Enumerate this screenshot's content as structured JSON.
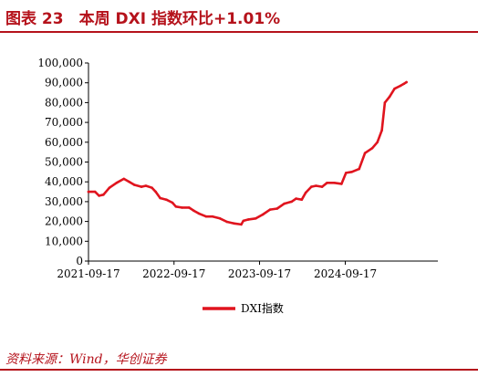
{
  "header": {
    "title": "图表 23　本周 DXI 指数环比+1.01%"
  },
  "footer": {
    "source": "资料来源：Wind，华创证券"
  },
  "chart_data": {
    "type": "line",
    "title": "",
    "xlabel": "",
    "ylabel": "",
    "x_type": "date",
    "xlim": [
      "2021-09-17",
      "2025-10-17"
    ],
    "ylim": [
      0,
      100000
    ],
    "y_ticks": [
      0,
      10000,
      20000,
      30000,
      40000,
      50000,
      60000,
      70000,
      80000,
      90000,
      100000
    ],
    "y_tick_labels": [
      "0",
      "10,000",
      "20,000",
      "30,000",
      "40,000",
      "50,000",
      "60,000",
      "70,000",
      "80,000",
      "90,000",
      "100,000"
    ],
    "x_ticks": [
      "2021-09-17",
      "2022-09-17",
      "2023-09-17",
      "2024-09-17"
    ],
    "grid": false,
    "legend_position": "bottom-center",
    "series": [
      {
        "name": "DXI指数",
        "color": "#e0141e",
        "points": [
          [
            "2021-09-17",
            35000
          ],
          [
            "2021-10-15",
            35000
          ],
          [
            "2021-11-01",
            33000
          ],
          [
            "2021-11-20",
            33500
          ],
          [
            "2021-12-15",
            37000
          ],
          [
            "2022-01-15",
            39500
          ],
          [
            "2022-02-15",
            41500
          ],
          [
            "2022-03-10",
            40000
          ],
          [
            "2022-04-01",
            38500
          ],
          [
            "2022-05-01",
            37500
          ],
          [
            "2022-05-20",
            38000
          ],
          [
            "2022-06-15",
            37000
          ],
          [
            "2022-07-01",
            35000
          ],
          [
            "2022-07-20",
            31800
          ],
          [
            "2022-08-15",
            31000
          ],
          [
            "2022-09-10",
            29500
          ],
          [
            "2022-09-25",
            27500
          ],
          [
            "2022-10-20",
            27000
          ],
          [
            "2022-11-20",
            27000
          ],
          [
            "2022-12-10",
            25500
          ],
          [
            "2023-01-01",
            24000
          ],
          [
            "2023-02-01",
            22500
          ],
          [
            "2023-03-01",
            22500
          ],
          [
            "2023-04-01",
            21500
          ],
          [
            "2023-05-01",
            19800
          ],
          [
            "2023-06-01",
            19000
          ],
          [
            "2023-07-01",
            18500
          ],
          [
            "2023-07-10",
            20300
          ],
          [
            "2023-08-01",
            21000
          ],
          [
            "2023-09-01",
            21500
          ],
          [
            "2023-10-01",
            23500
          ],
          [
            "2023-11-01",
            26000
          ],
          [
            "2023-12-01",
            26500
          ],
          [
            "2024-01-01",
            29000
          ],
          [
            "2024-02-01",
            30000
          ],
          [
            "2024-02-20",
            31500
          ],
          [
            "2024-03-15",
            31000
          ],
          [
            "2024-04-01",
            34500
          ],
          [
            "2024-04-25",
            37500
          ],
          [
            "2024-05-15",
            38000
          ],
          [
            "2024-06-10",
            37500
          ],
          [
            "2024-07-01",
            39500
          ],
          [
            "2024-08-01",
            39500
          ],
          [
            "2024-09-01",
            39000
          ],
          [
            "2024-09-20",
            44500
          ],
          [
            "2024-10-15",
            45000
          ],
          [
            "2024-11-15",
            46500
          ],
          [
            "2024-12-10",
            54500
          ],
          [
            "2025-01-10",
            57000
          ],
          [
            "2025-02-01",
            60000
          ],
          [
            "2025-02-20",
            66000
          ],
          [
            "2025-03-05",
            80000
          ],
          [
            "2025-03-25",
            83000
          ],
          [
            "2025-04-15",
            87000
          ],
          [
            "2025-05-10",
            88500
          ],
          [
            "2025-05-25",
            89500
          ],
          [
            "2025-06-05",
            90300
          ]
        ]
      }
    ]
  }
}
